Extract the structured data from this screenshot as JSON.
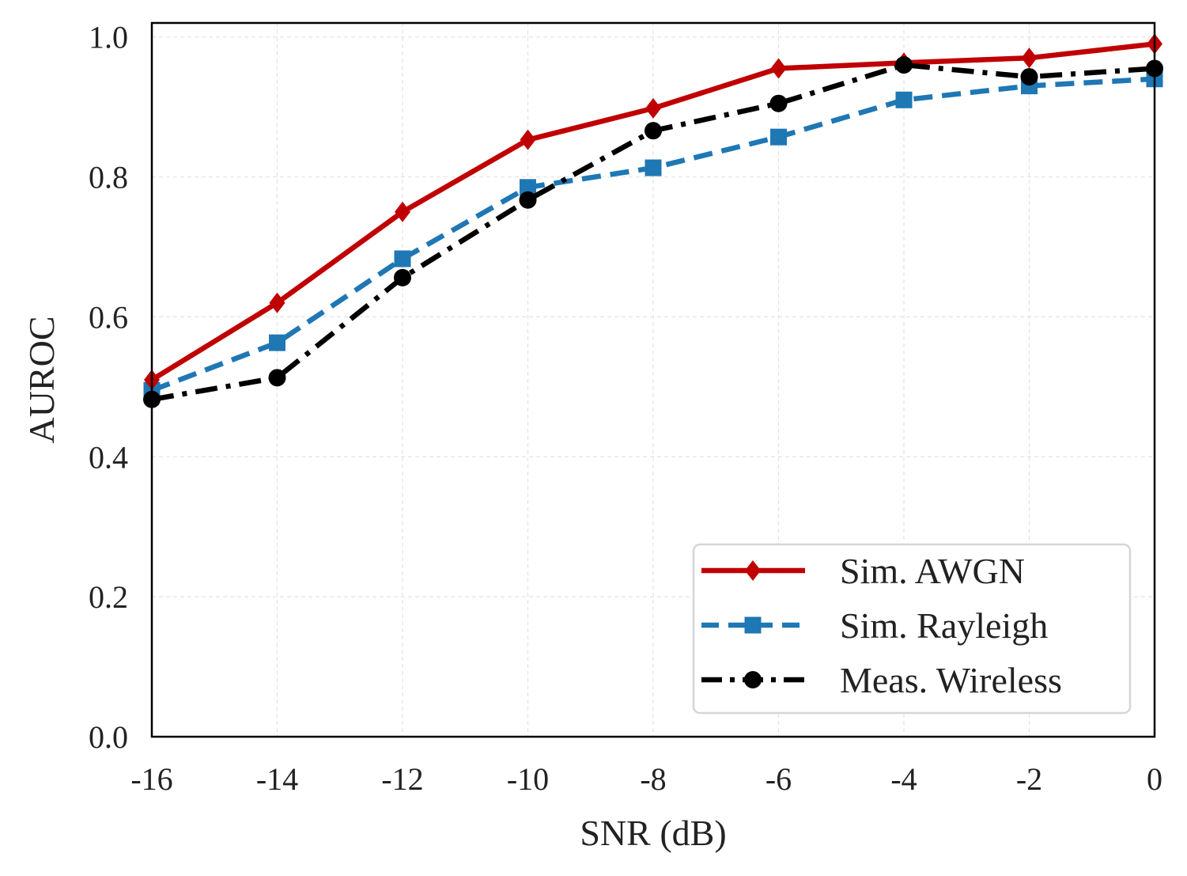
{
  "chart_data": {
    "type": "line",
    "title": "",
    "xlabel": "SNR (dB)",
    "ylabel": "AUROC",
    "xlim": [
      -16,
      0
    ],
    "ylim": [
      0.0,
      1.02
    ],
    "x": [
      -16,
      -14,
      -12,
      -10,
      -8,
      -6,
      -4,
      -2,
      0
    ],
    "x_tick_labels": [
      "-16",
      "-14",
      "-12",
      "-10",
      "-8",
      "-6",
      "-4",
      "-2",
      "0"
    ],
    "y_ticks": [
      0.0,
      0.2,
      0.4,
      0.6,
      0.8,
      1.0
    ],
    "y_tick_labels": [
      "0.0",
      "0.2",
      "0.4",
      "0.6",
      "0.8",
      "1.0"
    ],
    "grid": true,
    "legend_position": "bottom-right",
    "series": [
      {
        "name": "Sim. AWGN",
        "values": [
          0.51,
          0.62,
          0.75,
          0.853,
          0.898,
          0.955,
          0.963,
          0.97,
          0.99
        ],
        "color": "#c00000",
        "dash": "solid",
        "marker": "diamond"
      },
      {
        "name": "Sim. Rayleigh",
        "values": [
          0.495,
          0.563,
          0.683,
          0.785,
          0.813,
          0.857,
          0.91,
          0.93,
          0.94
        ],
        "color": "#1f77b4",
        "dash": "dashed",
        "marker": "square"
      },
      {
        "name": "Meas. Wireless",
        "values": [
          0.482,
          0.513,
          0.656,
          0.767,
          0.866,
          0.905,
          0.96,
          0.943,
          0.955
        ],
        "color": "#000000",
        "dash": "dashdot",
        "marker": "circle"
      }
    ]
  }
}
